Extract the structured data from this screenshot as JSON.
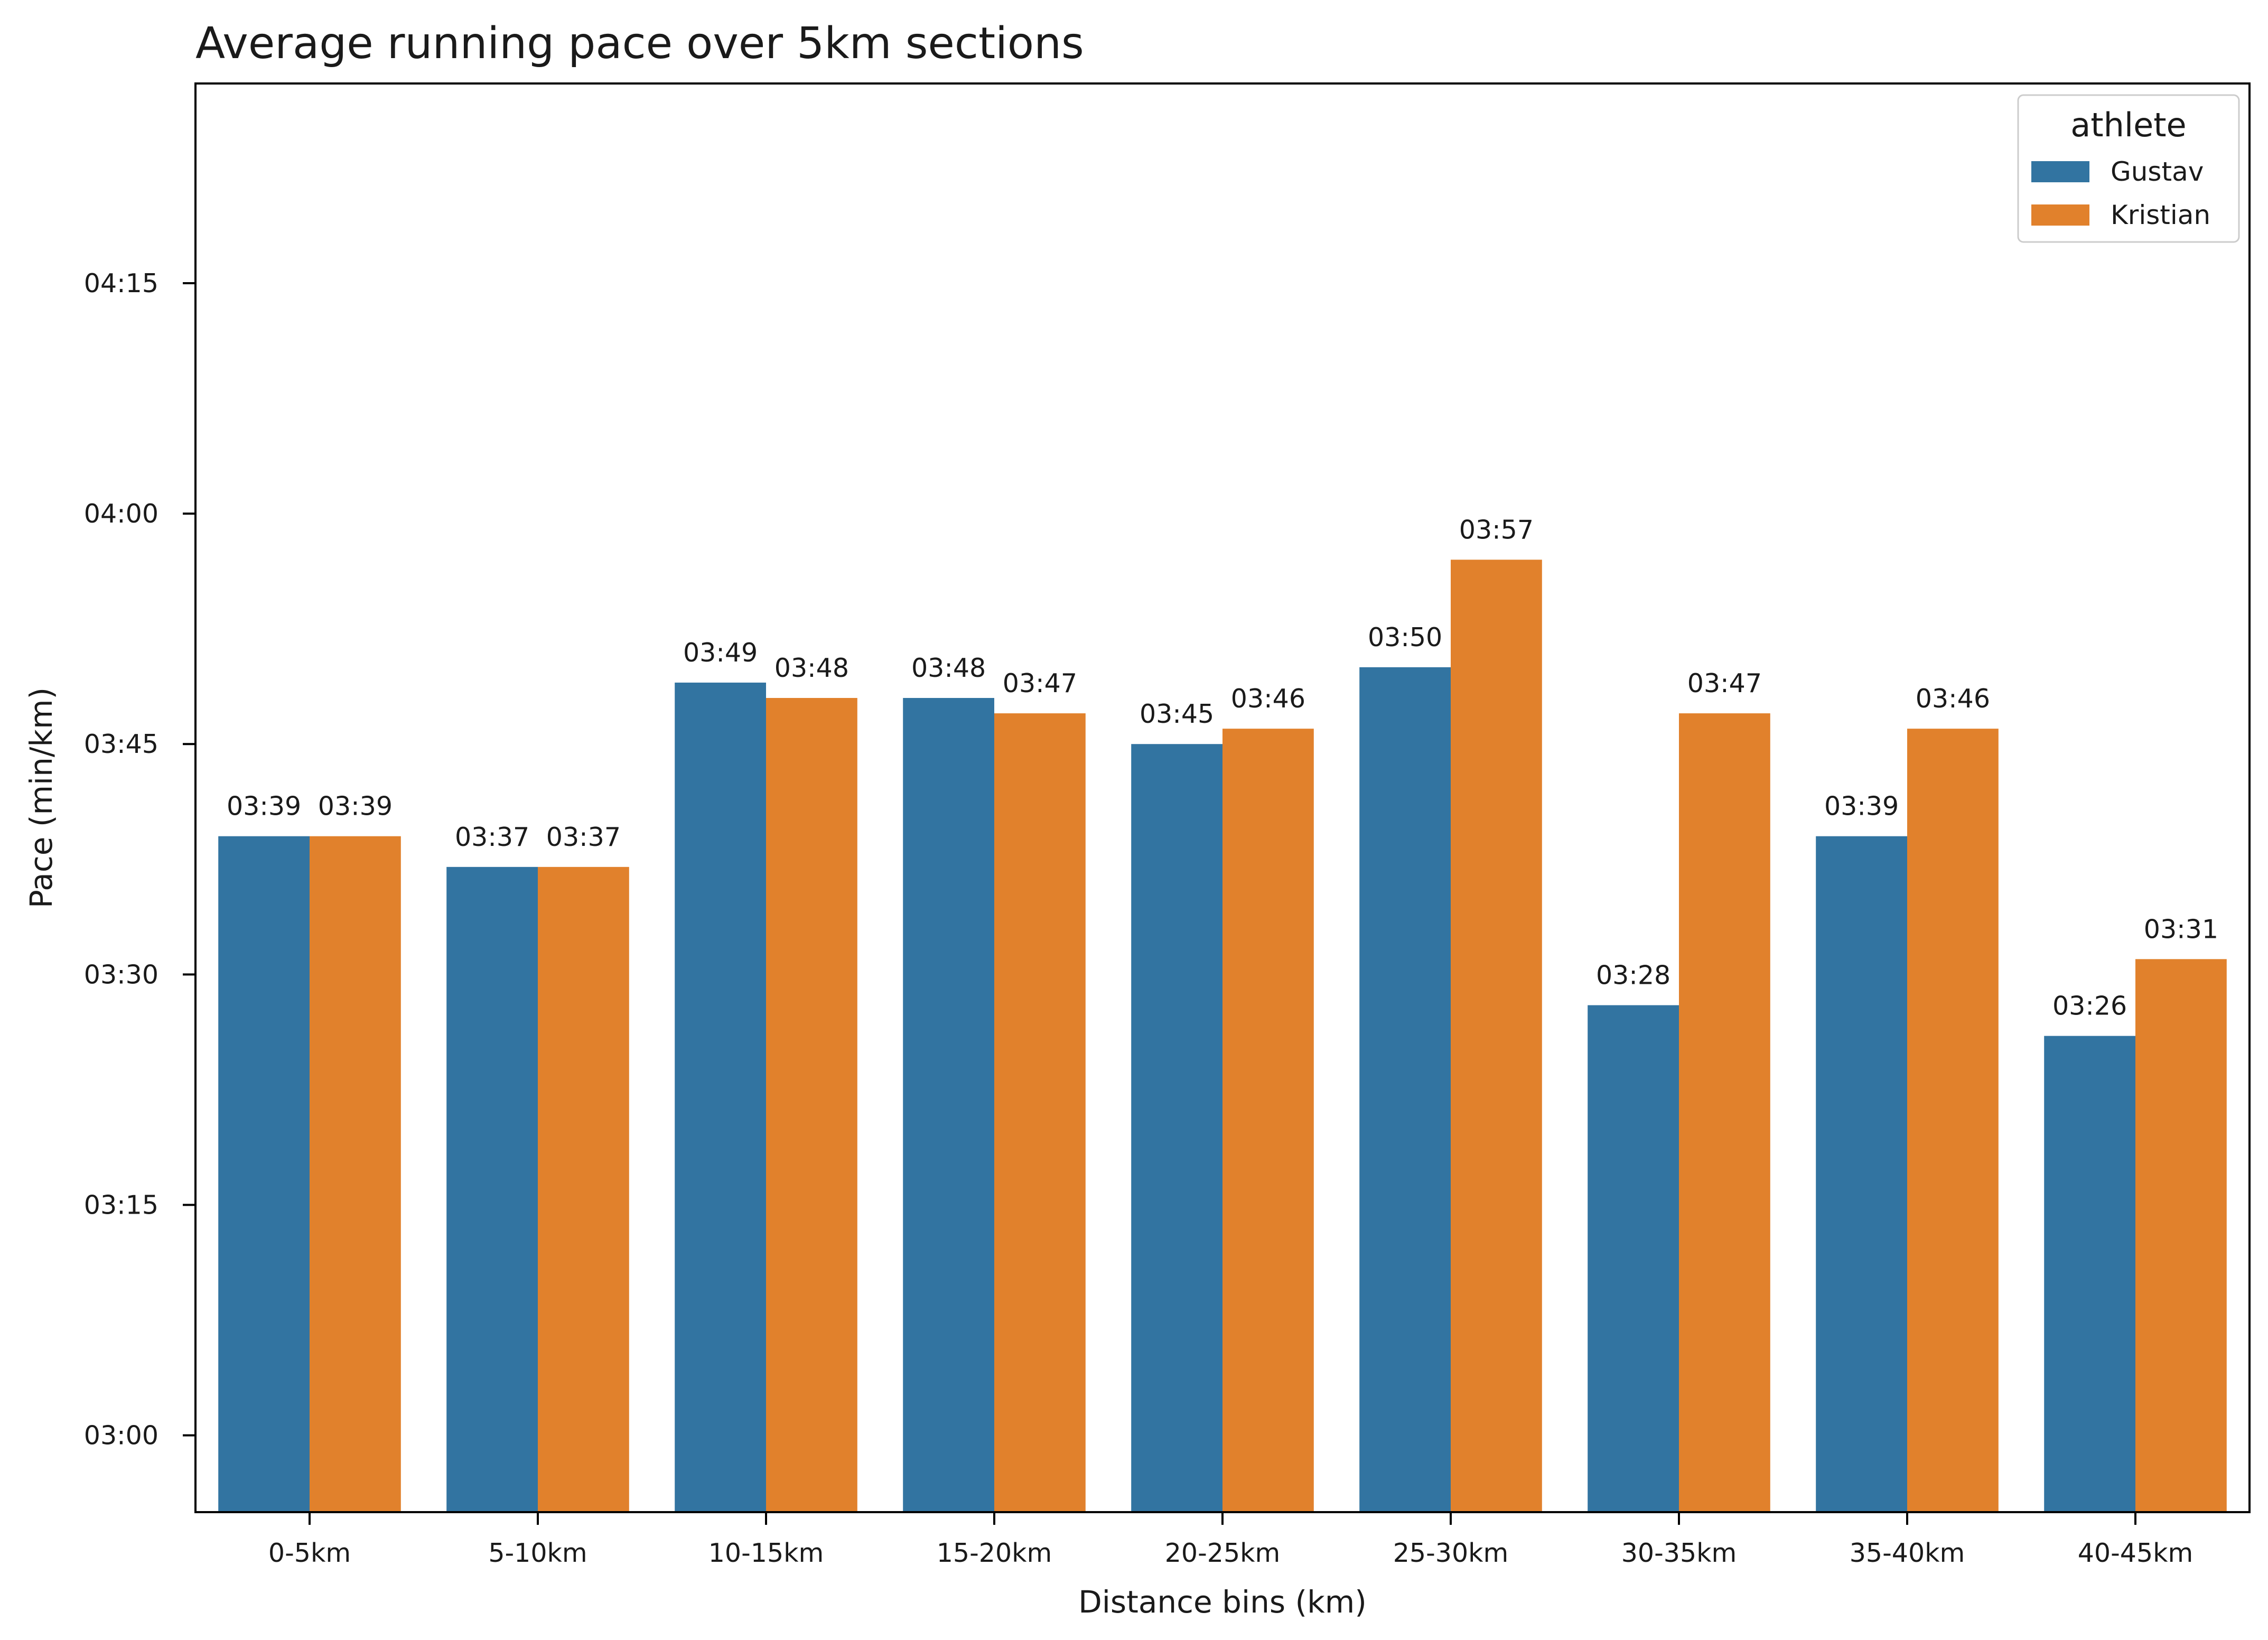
{
  "chart_data": {
    "type": "bar",
    "title": "Average running pace over 5km sections",
    "xlabel": "Distance bins (km)",
    "ylabel": "Pace (min/km)",
    "categories": [
      "0-5km",
      "5-10km",
      "10-15km",
      "15-20km",
      "20-25km",
      "25-30km",
      "30-35km",
      "35-40km",
      "40-45km"
    ],
    "series": [
      {
        "name": "Gustav",
        "color": "#3274a1",
        "values": [
          "03:39",
          "03:37",
          "03:49",
          "03:48",
          "03:45",
          "03:50",
          "03:28",
          "03:39",
          "03:26"
        ]
      },
      {
        "name": "Kristian",
        "color": "#e1812c",
        "values": [
          "03:39",
          "03:37",
          "03:48",
          "03:47",
          "03:46",
          "03:57",
          "03:47",
          "03:46",
          "03:31"
        ]
      }
    ],
    "yticks": [
      "03:00",
      "03:15",
      "03:30",
      "03:45",
      "04:00",
      "04:15"
    ],
    "ylim": [
      "02:55",
      "04:28"
    ],
    "legend": {
      "title": "athlete",
      "position": "top-right"
    },
    "grid": false
  }
}
